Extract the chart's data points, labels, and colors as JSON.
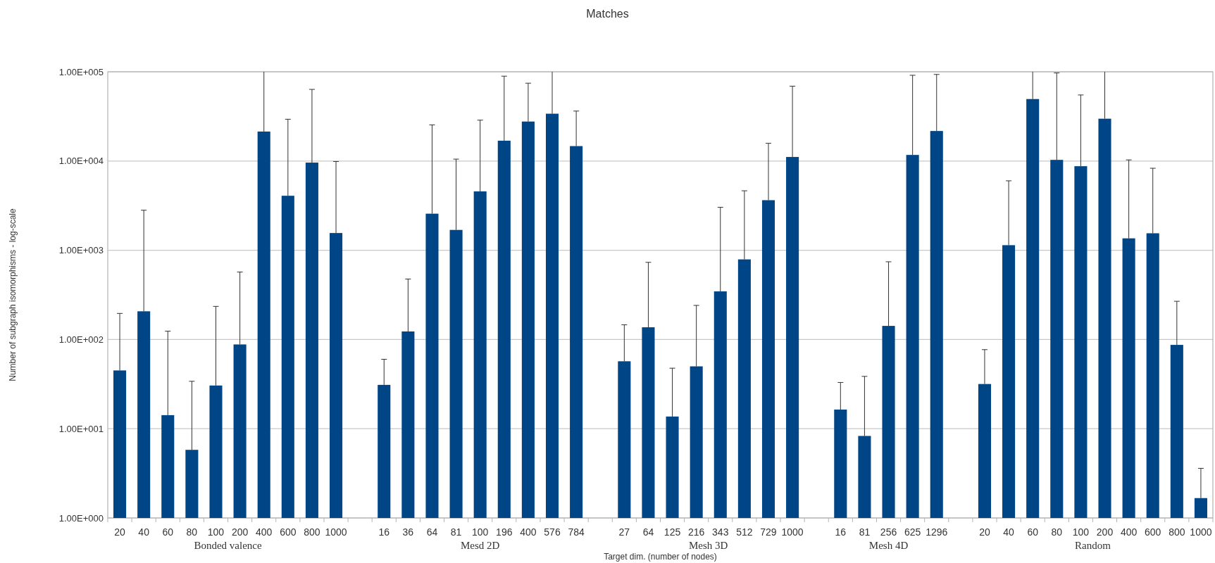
{
  "chart_data": {
    "type": "bar",
    "title": "Matches",
    "xlabel": "Target dim. (number of nodes)",
    "ylabel": "Number of subgraph isomorphisms - log-scale",
    "annotations": [
      "Bonded valence",
      "Mesd 2D",
      "Mesh 3D",
      "Mesh 4D",
      "Random"
    ],
    "categories": [
      "20",
      "40",
      "60",
      "80",
      "100",
      "200",
      "400",
      "600",
      "800",
      "1000",
      null,
      "16",
      "36",
      "64",
      "81",
      "100",
      "196",
      "400",
      "576",
      "784",
      null,
      "27",
      "64",
      "125",
      "216",
      "343",
      "512",
      "729",
      "1000",
      null,
      "16",
      "81",
      "256",
      "625",
      "1296",
      null,
      "20",
      "40",
      "60",
      "80",
      "100",
      "200",
      "400",
      "600",
      "800",
      "1000"
    ],
    "values": [
      45,
      207,
      14.2,
      5.8,
      30.5,
      88,
      21400,
      4080,
      9600,
      1560,
      null,
      31,
      123,
      2570,
      1690,
      4570,
      16900,
      27700,
      33900,
      14700,
      null,
      57,
      137,
      13.7,
      50,
      346,
      790,
      3640,
      11100,
      null,
      16.4,
      8.3,
      142,
      11700,
      21700,
      null,
      31.7,
      1140,
      49500,
      10300,
      8750,
      29800,
      1360,
      1550,
      87,
      1.67
    ],
    "errors": [
      [
        45,
        196
      ],
      [
        207,
        2810
      ],
      [
        14.2,
        124
      ],
      [
        5.8,
        34
      ],
      [
        30.5,
        235
      ],
      [
        88,
        570
      ],
      [
        21400,
        100000
      ],
      [
        4080,
        29400
      ],
      [
        9600,
        63500
      ],
      [
        1560,
        9880
      ],
      null,
      [
        31,
        60
      ],
      [
        123,
        476
      ],
      [
        2570,
        25400
      ],
      [
        1690,
        10500
      ],
      [
        4570,
        28700
      ],
      [
        16900,
        89300
      ],
      [
        27700,
        74500
      ],
      [
        33900,
        100000
      ],
      [
        14700,
        36300
      ],
      null,
      [
        57,
        146
      ],
      [
        137,
        732
      ],
      [
        13.7,
        47.7
      ],
      [
        50,
        241
      ],
      [
        346,
        3030
      ],
      [
        790,
        4640
      ],
      [
        3640,
        15800
      ],
      [
        11100,
        69000
      ],
      null,
      [
        16.4,
        33
      ],
      [
        8.3,
        38.6
      ],
      [
        142,
        743
      ],
      [
        11700,
        91400
      ],
      [
        21700,
        93400
      ],
      null,
      [
        31.7,
        77
      ],
      [
        1140,
        6000
      ],
      [
        49500,
        100000
      ],
      [
        10300,
        97000
      ],
      [
        8750,
        55000
      ],
      [
        29800,
        100000
      ],
      [
        1360,
        10300
      ],
      [
        1550,
        8300
      ],
      [
        87,
        268
      ],
      [
        1.67,
        3.6
      ]
    ],
    "color": "#004586",
    "log": true,
    "grid": "y",
    "ylim": [
      1,
      100000
    ],
    "yticks": [
      {
        "value": 1,
        "label": "1.00E+000"
      },
      {
        "value": 10,
        "label": "1.00E+001"
      },
      {
        "value": 100,
        "label": "1.00E+002"
      },
      {
        "value": 1000,
        "label": "1.00E+003"
      },
      {
        "value": 10000,
        "label": "1.00E+004"
      },
      {
        "value": 100000,
        "label": "1.00E+005"
      }
    ]
  }
}
